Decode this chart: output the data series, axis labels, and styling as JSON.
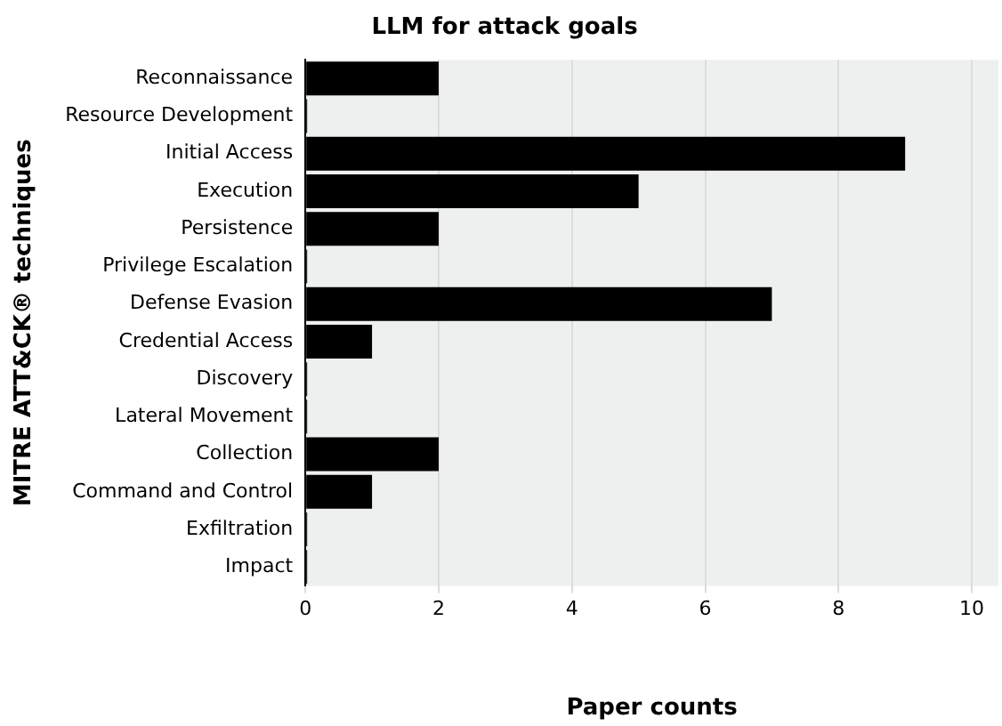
{
  "chart_data": {
    "type": "bar",
    "orientation": "horizontal",
    "title": "LLM for attack goals",
    "xlabel": "Paper counts",
    "ylabel": "MITRE ATT&CK® techniques",
    "categories": [
      "Reconnaissance",
      "Resource Development",
      "Initial Access",
      "Execution",
      "Persistence",
      "Privilege Escalation",
      "Defense Evasion",
      "Credential Access",
      "Discovery",
      "Lateral Movement",
      "Collection",
      "Command and Control",
      "Exfiltration",
      "Impact"
    ],
    "values": [
      2,
      0,
      9,
      5,
      2,
      0,
      7,
      1,
      0,
      0,
      2,
      1,
      0,
      0
    ],
    "color": "#000000",
    "xlim": [
      0,
      10.4
    ],
    "xticks": [
      0,
      2,
      4,
      6,
      8,
      10
    ],
    "grid": "x"
  }
}
